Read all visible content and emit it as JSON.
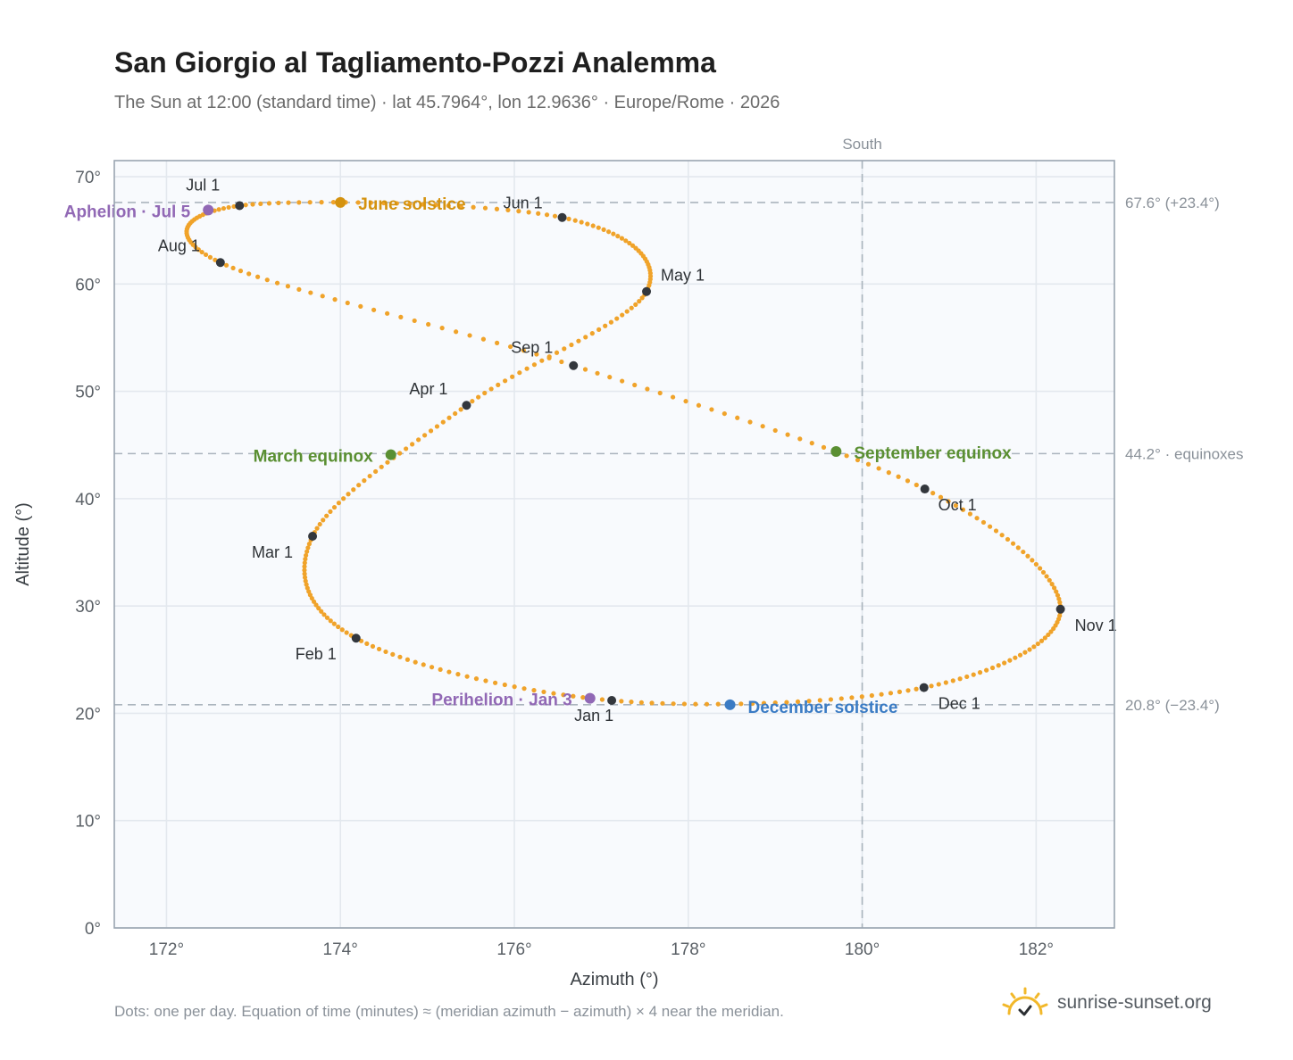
{
  "header": {
    "title": "San Giorgio al Tagliamento-Pozzi Analemma",
    "subtitle": "The Sun at 12:00 (standard time) · lat 45.7964°, lon 12.9636° · Europe/Rome · 2026"
  },
  "footer": {
    "note": "Dots: one per day. Equation of time (minutes) ≈ (meridian azimuth − azimuth) × 4 near the meridian.",
    "brand": "sunrise-sunset.org",
    "brand_icon": "sun-logo-icon"
  },
  "chart_data": {
    "type": "scatter",
    "xlabel": "Azimuth (°)",
    "ylabel": "Altitude (°)",
    "xlim": [
      171.4,
      182.9
    ],
    "ylim": [
      0,
      71.5
    ],
    "x_ticks": [
      172,
      174,
      176,
      178,
      180,
      182
    ],
    "x_tick_labels": [
      "172°",
      "174°",
      "176°",
      "178°",
      "180°",
      "182°"
    ],
    "y_ticks": [
      0,
      10,
      20,
      30,
      40,
      50,
      60,
      70
    ],
    "y_tick_labels": [
      "0°",
      "10°",
      "20°",
      "30°",
      "40°",
      "50°",
      "60°",
      "70°"
    ],
    "grid": true,
    "colors": {
      "curve": "#f0a32a",
      "month": "#33373d",
      "solstice_june": "#d4920f",
      "solstice_december": "#3a7bc4",
      "equinox": "#5a8f32",
      "apsis": "#9168b5",
      "reference": "#aab4bd",
      "plot_bg": "#f8fafd",
      "frame": "#9aa5b1"
    },
    "south_line": {
      "x": 180,
      "label": "South"
    },
    "reference_lines": [
      {
        "y": 67.6,
        "label": "67.6° (+23.4°)"
      },
      {
        "y": 44.2,
        "label": "44.2° · equinoxes"
      },
      {
        "y": 20.8,
        "label": "20.8° (−23.4°)"
      }
    ],
    "month_points": [
      {
        "label": "Jan 1",
        "x": 177.12,
        "y": 21.2
      },
      {
        "label": "Feb 1",
        "x": 174.18,
        "y": 27.0
      },
      {
        "label": "Mar 1",
        "x": 173.68,
        "y": 36.5
      },
      {
        "label": "Apr 1",
        "x": 175.45,
        "y": 48.7
      },
      {
        "label": "May 1",
        "x": 177.52,
        "y": 59.3
      },
      {
        "label": "Jun 1",
        "x": 176.55,
        "y": 66.2
      },
      {
        "label": "Jul 1",
        "x": 172.84,
        "y": 67.3
      },
      {
        "label": "Aug 1",
        "x": 172.62,
        "y": 62.0
      },
      {
        "label": "Sep 1",
        "x": 176.68,
        "y": 52.4
      },
      {
        "label": "Oct 1",
        "x": 180.72,
        "y": 40.9
      },
      {
        "label": "Nov 1",
        "x": 182.28,
        "y": 29.7
      },
      {
        "label": "Dec 1",
        "x": 180.71,
        "y": 22.4
      }
    ],
    "events": [
      {
        "label": "June solstice",
        "x": 174.0,
        "y": 67.6,
        "kind": "solstice_june"
      },
      {
        "label": "December solstice",
        "x": 178.48,
        "y": 20.8,
        "kind": "solstice_december"
      },
      {
        "label": "March equinox",
        "x": 174.58,
        "y": 44.1,
        "kind": "equinox"
      },
      {
        "label": "September equinox",
        "x": 179.7,
        "y": 44.4,
        "kind": "equinox"
      },
      {
        "label": "Perihelion · Jan 3",
        "x": 176.87,
        "y": 21.4,
        "kind": "apsis"
      },
      {
        "label": "Aphelion · Jul 5",
        "x": 172.48,
        "y": 66.9,
        "kind": "apsis"
      }
    ]
  }
}
